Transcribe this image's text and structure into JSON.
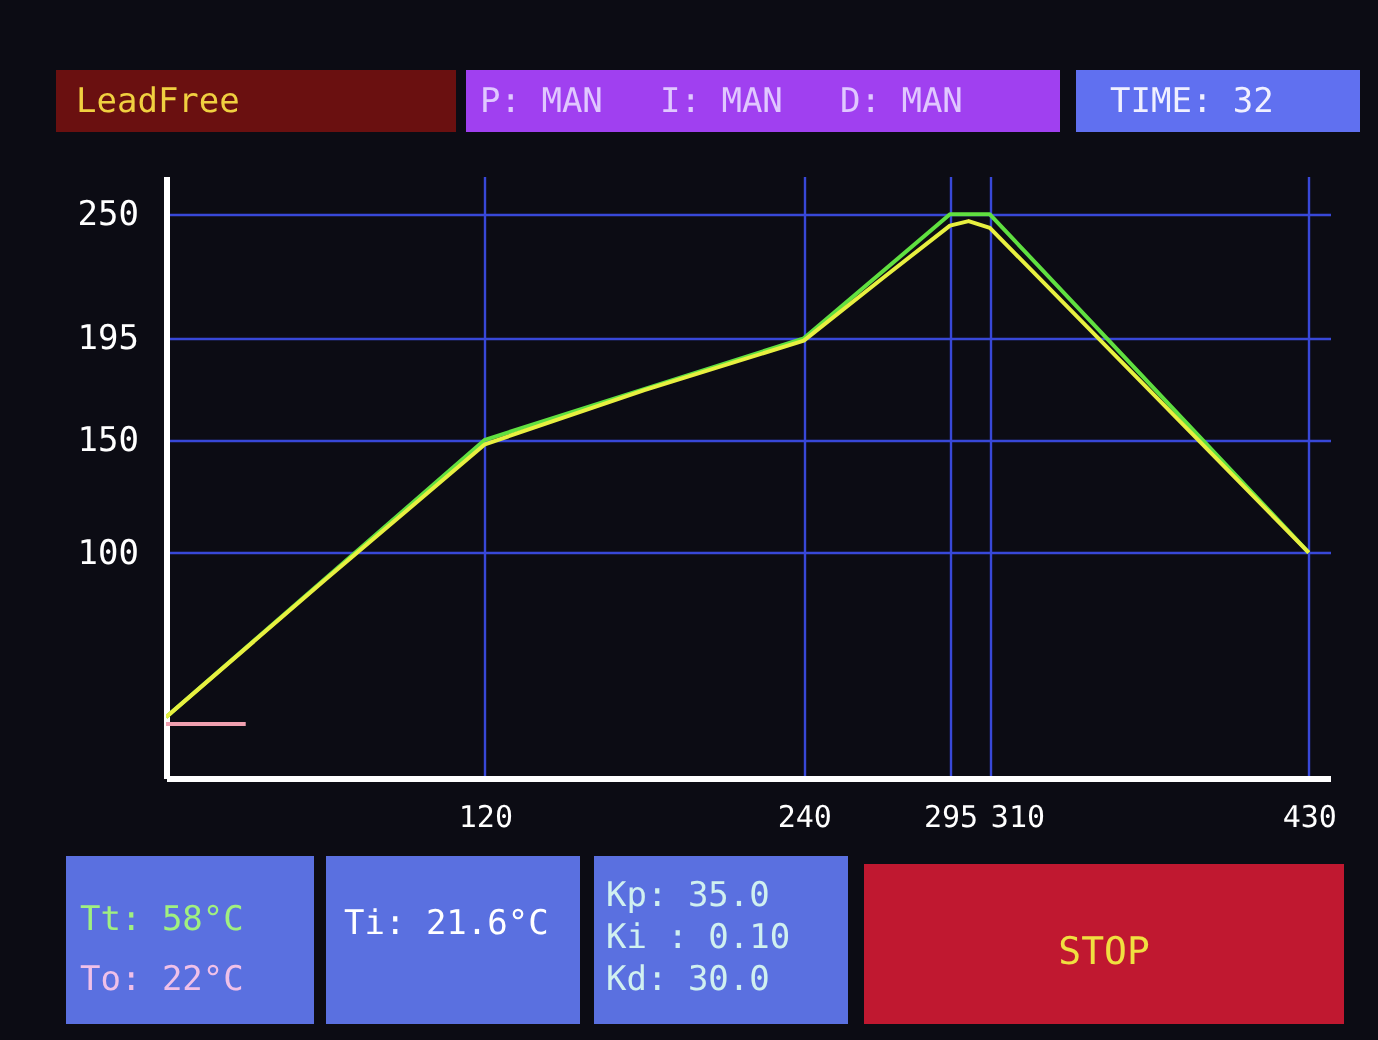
{
  "chart_data": {
    "type": "line",
    "series": [
      {
        "color": "#60e040",
        "x": [
          0,
          120,
          240,
          295,
          310,
          430
        ],
        "values": [
          27,
          150,
          195,
          250,
          250,
          100
        ]
      },
      {
        "color": "#e8f040",
        "x": [
          0,
          60,
          120,
          180,
          240,
          270,
          295,
          302,
          310,
          370,
          430
        ],
        "values": [
          27,
          88,
          148,
          172,
          194,
          222,
          245,
          247,
          244,
          172,
          100
        ]
      },
      {
        "color": "#f0a0b0",
        "x": [
          0,
          30
        ],
        "values": [
          24,
          24
        ]
      }
    ],
    "xlim": [
      0,
      438
    ],
    "ylim": [
      0,
      267
    ],
    "xticks": [
      120,
      240,
      295,
      310,
      430
    ],
    "yticks": [
      100,
      150,
      195,
      250
    ],
    "grid": true,
    "legend": false,
    "marker": "none",
    "line_style": "solid",
    "annotations": [
      "LeadFree",
      "P: MAN",
      "I: MAN",
      "D: MAN",
      "TIME: 32",
      "Tt: 58°C",
      "To: 22°C",
      "Ti: 21.6°C",
      "Kp: 35.0",
      "Ki : 0.10",
      "Kd: 30.0",
      "STOP"
    ]
  }
}
